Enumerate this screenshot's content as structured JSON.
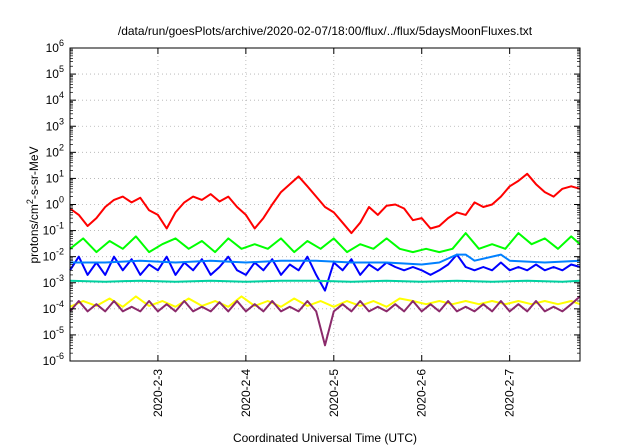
{
  "chart_data": {
    "type": "line",
    "title": "/data/run/goesPlots/archive/2020-02-07/18:00/flux/../flux/5daysMoonFluxes.txt",
    "xlabel": "Coordinated Universal Time (UTC)",
    "ylabel": {
      "prefix": "protons/cm",
      "superscript": "2",
      "suffix": "-s-sr-MeV"
    },
    "y_scale": "log",
    "ylim": [
      1e-06,
      1000000.0
    ],
    "y_ticks": [
      {
        "base": "10",
        "exp": "-6",
        "value": 1e-06
      },
      {
        "base": "10",
        "exp": "-5",
        "value": 1e-05
      },
      {
        "base": "10",
        "exp": "-4",
        "value": 0.0001
      },
      {
        "base": "10",
        "exp": "-3",
        "value": 0.001
      },
      {
        "base": "10",
        "exp": "-2",
        "value": 0.01
      },
      {
        "base": "10",
        "exp": "-1",
        "value": 0.1
      },
      {
        "base": "10",
        "exp": "0",
        "value": 1
      },
      {
        "base": "10",
        "exp": "1",
        "value": 10
      },
      {
        "base": "10",
        "exp": "2",
        "value": 100
      },
      {
        "base": "10",
        "exp": "3",
        "value": 1000
      },
      {
        "base": "10",
        "exp": "4",
        "value": 10000
      },
      {
        "base": "10",
        "exp": "5",
        "value": 100000
      },
      {
        "base": "10",
        "exp": "6",
        "value": 1000000
      }
    ],
    "x_range_days": [
      2.0,
      7.8
    ],
    "x_ticks": [
      {
        "label": "2020-2-3",
        "day": 3
      },
      {
        "label": "2020-2-4",
        "day": 4
      },
      {
        "label": "2020-2-5",
        "day": 5
      },
      {
        "label": "2020-2-6",
        "day": 6
      },
      {
        "label": "2020-2-7",
        "day": 7
      }
    ],
    "grid": true,
    "series": [
      {
        "color": "#ff0000",
        "x": [
          2.0,
          2.1,
          2.2,
          2.3,
          2.4,
          2.5,
          2.6,
          2.7,
          2.8,
          2.9,
          3.0,
          3.1,
          3.2,
          3.3,
          3.4,
          3.5,
          3.6,
          3.7,
          3.8,
          3.9,
          4.0,
          4.1,
          4.2,
          4.3,
          4.4,
          4.5,
          4.6,
          4.7,
          4.8,
          4.9,
          5.0,
          5.1,
          5.2,
          5.3,
          5.4,
          5.5,
          5.6,
          5.7,
          5.8,
          5.9,
          6.0,
          6.1,
          6.2,
          6.3,
          6.4,
          6.5,
          6.6,
          6.7,
          6.8,
          6.9,
          7.0,
          7.1,
          7.2,
          7.3,
          7.4,
          7.5,
          7.6,
          7.7,
          7.8
        ],
        "y": [
          0.7,
          0.4,
          0.15,
          0.3,
          0.8,
          1.5,
          2,
          1.2,
          1.8,
          0.6,
          0.4,
          0.12,
          0.5,
          1.2,
          2,
          1.5,
          2.5,
          1.3,
          2,
          0.8,
          0.4,
          0.12,
          0.3,
          1,
          3,
          6,
          12,
          5,
          2,
          0.8,
          0.5,
          0.2,
          0.08,
          0.2,
          0.8,
          0.4,
          0.9,
          1,
          0.7,
          0.25,
          0.3,
          0.12,
          0.15,
          0.3,
          0.5,
          0.4,
          1.2,
          0.8,
          1,
          2,
          5,
          8,
          15,
          6,
          3,
          2,
          4,
          5,
          4
        ]
      },
      {
        "color": "#00ff00",
        "x": [
          2.0,
          2.15,
          2.3,
          2.45,
          2.6,
          2.75,
          2.9,
          3.05,
          3.2,
          3.35,
          3.5,
          3.65,
          3.8,
          3.95,
          4.1,
          4.25,
          4.4,
          4.55,
          4.7,
          4.85,
          5.0,
          5.15,
          5.3,
          5.45,
          5.6,
          5.75,
          5.9,
          6.05,
          6.2,
          6.35,
          6.5,
          6.65,
          6.8,
          6.95,
          7.1,
          7.25,
          7.4,
          7.55,
          7.7,
          7.8
        ],
        "y": [
          0.02,
          0.05,
          0.015,
          0.04,
          0.02,
          0.06,
          0.015,
          0.03,
          0.05,
          0.02,
          0.04,
          0.015,
          0.05,
          0.02,
          0.03,
          0.02,
          0.05,
          0.015,
          0.04,
          0.02,
          0.05,
          0.015,
          0.03,
          0.02,
          0.05,
          0.02,
          0.015,
          0.02,
          0.015,
          0.02,
          0.08,
          0.02,
          0.03,
          0.02,
          0.08,
          0.03,
          0.05,
          0.02,
          0.06,
          0.03
        ]
      },
      {
        "color": "#0000ff",
        "x": [
          2.0,
          2.1,
          2.2,
          2.3,
          2.4,
          2.5,
          2.6,
          2.7,
          2.8,
          2.9,
          3.0,
          3.1,
          3.2,
          3.3,
          3.4,
          3.5,
          3.6,
          3.7,
          3.8,
          3.9,
          4.0,
          4.1,
          4.2,
          4.3,
          4.4,
          4.5,
          4.6,
          4.7,
          4.8,
          4.9,
          5.0,
          5.1,
          5.2,
          5.3,
          5.4,
          5.5,
          5.6,
          5.7,
          5.8,
          5.9,
          6.0,
          6.1,
          6.2,
          6.3,
          6.4,
          6.5,
          6.6,
          6.7,
          6.8,
          6.9,
          7.0,
          7.1,
          7.2,
          7.3,
          7.4,
          7.5,
          7.6,
          7.7,
          7.8
        ],
        "y": [
          0.003,
          0.01,
          0.002,
          0.006,
          0.002,
          0.01,
          0.003,
          0.008,
          0.002,
          0.005,
          0.003,
          0.01,
          0.002,
          0.006,
          0.003,
          0.008,
          0.002,
          0.004,
          0.01,
          0.003,
          0.002,
          0.006,
          0.003,
          0.008,
          0.002,
          0.005,
          0.003,
          0.01,
          0.002,
          0.0005,
          0.006,
          0.003,
          0.008,
          0.002,
          0.005,
          0.003,
          0.006,
          0.004,
          0.003,
          0.004,
          0.003,
          0.002,
          0.003,
          0.005,
          0.012,
          0.004,
          0.003,
          0.004,
          0.003,
          0.006,
          0.003,
          0.004,
          0.003,
          0.005,
          0.003,
          0.004,
          0.003,
          0.005,
          0.004
        ]
      },
      {
        "color": "#0080ff",
        "x": [
          2.0,
          2.4,
          2.8,
          3.2,
          3.6,
          4.0,
          4.4,
          4.8,
          5.2,
          5.6,
          6.0,
          6.2,
          6.4,
          6.5,
          6.6,
          6.9,
          7.0,
          7.4,
          7.8
        ],
        "y": [
          0.006,
          0.006,
          0.007,
          0.006,
          0.007,
          0.006,
          0.007,
          0.007,
          0.006,
          0.006,
          0.005,
          0.006,
          0.012,
          0.012,
          0.007,
          0.012,
          0.007,
          0.006,
          0.007
        ]
      },
      {
        "color": "#00d0a0",
        "x": [
          2.0,
          2.4,
          2.8,
          3.2,
          3.6,
          4.0,
          4.4,
          4.8,
          5.2,
          5.6,
          6.0,
          6.4,
          6.8,
          7.2,
          7.6,
          7.8
        ],
        "y": [
          0.0012,
          0.0011,
          0.0012,
          0.0011,
          0.0012,
          0.0011,
          0.0012,
          0.0012,
          0.0011,
          0.0012,
          0.0011,
          0.0012,
          0.0011,
          0.0012,
          0.0011,
          0.0012
        ]
      },
      {
        "color": "#ffff00",
        "x": [
          2.0,
          2.15,
          2.3,
          2.45,
          2.6,
          2.75,
          2.9,
          3.05,
          3.2,
          3.35,
          3.5,
          3.65,
          3.8,
          3.95,
          4.1,
          4.25,
          4.4,
          4.55,
          4.7,
          4.85,
          5.0,
          5.15,
          5.3,
          5.45,
          5.6,
          5.75,
          5.9,
          6.05,
          6.2,
          6.35,
          6.5,
          6.65,
          6.8,
          6.95,
          7.1,
          7.25,
          7.4,
          7.55,
          7.7,
          7.8
        ],
        "y": [
          0.00012,
          0.0002,
          0.00013,
          0.00025,
          0.00012,
          0.0003,
          0.00013,
          0.0002,
          0.00012,
          0.00025,
          0.00013,
          0.0002,
          0.00012,
          0.0003,
          0.00013,
          0.0002,
          0.00012,
          0.00025,
          0.00013,
          0.0002,
          0.00012,
          0.0002,
          0.00013,
          0.0002,
          0.00012,
          0.00025,
          0.0002,
          0.00015,
          0.0002,
          0.00015,
          0.0002,
          0.00015,
          0.0002,
          0.00015,
          0.0002,
          0.00015,
          0.0002,
          0.00015,
          0.0002,
          0.00015
        ]
      },
      {
        "color": "#8b2a6b",
        "x": [
          2.0,
          2.1,
          2.2,
          2.3,
          2.4,
          2.5,
          2.6,
          2.7,
          2.8,
          2.9,
          3.0,
          3.1,
          3.2,
          3.3,
          3.4,
          3.5,
          3.6,
          3.7,
          3.8,
          3.9,
          4.0,
          4.1,
          4.2,
          4.3,
          4.4,
          4.5,
          4.6,
          4.7,
          4.8,
          4.9,
          5.0,
          5.1,
          5.2,
          5.3,
          5.4,
          5.5,
          5.6,
          5.7,
          5.8,
          5.9,
          6.0,
          6.1,
          6.2,
          6.3,
          6.4,
          6.5,
          6.6,
          6.7,
          6.8,
          6.9,
          7.0,
          7.1,
          7.2,
          7.3,
          7.4,
          7.5,
          7.6,
          7.7,
          7.8
        ],
        "y": [
          8e-05,
          0.0002,
          8e-05,
          0.00015,
          8e-05,
          0.0002,
          8e-05,
          0.00012,
          8e-05,
          0.0002,
          8e-05,
          0.00015,
          8e-05,
          0.0002,
          8e-05,
          0.00012,
          8e-05,
          0.00018,
          8e-05,
          0.0002,
          8e-05,
          0.00015,
          8e-05,
          0.0002,
          8e-05,
          0.00012,
          8e-05,
          0.0002,
          8e-05,
          4e-06,
          8e-05,
          0.00015,
          8e-05,
          0.0002,
          8e-05,
          0.00012,
          8e-05,
          0.00015,
          8e-05,
          0.0002,
          8e-05,
          0.00015,
          8e-05,
          0.0002,
          8e-05,
          0.00012,
          8e-05,
          0.00015,
          8e-05,
          0.0002,
          8e-05,
          0.00015,
          8e-05,
          0.0002,
          8e-05,
          0.00012,
          8e-05,
          0.00015,
          0.0003
        ]
      }
    ]
  }
}
